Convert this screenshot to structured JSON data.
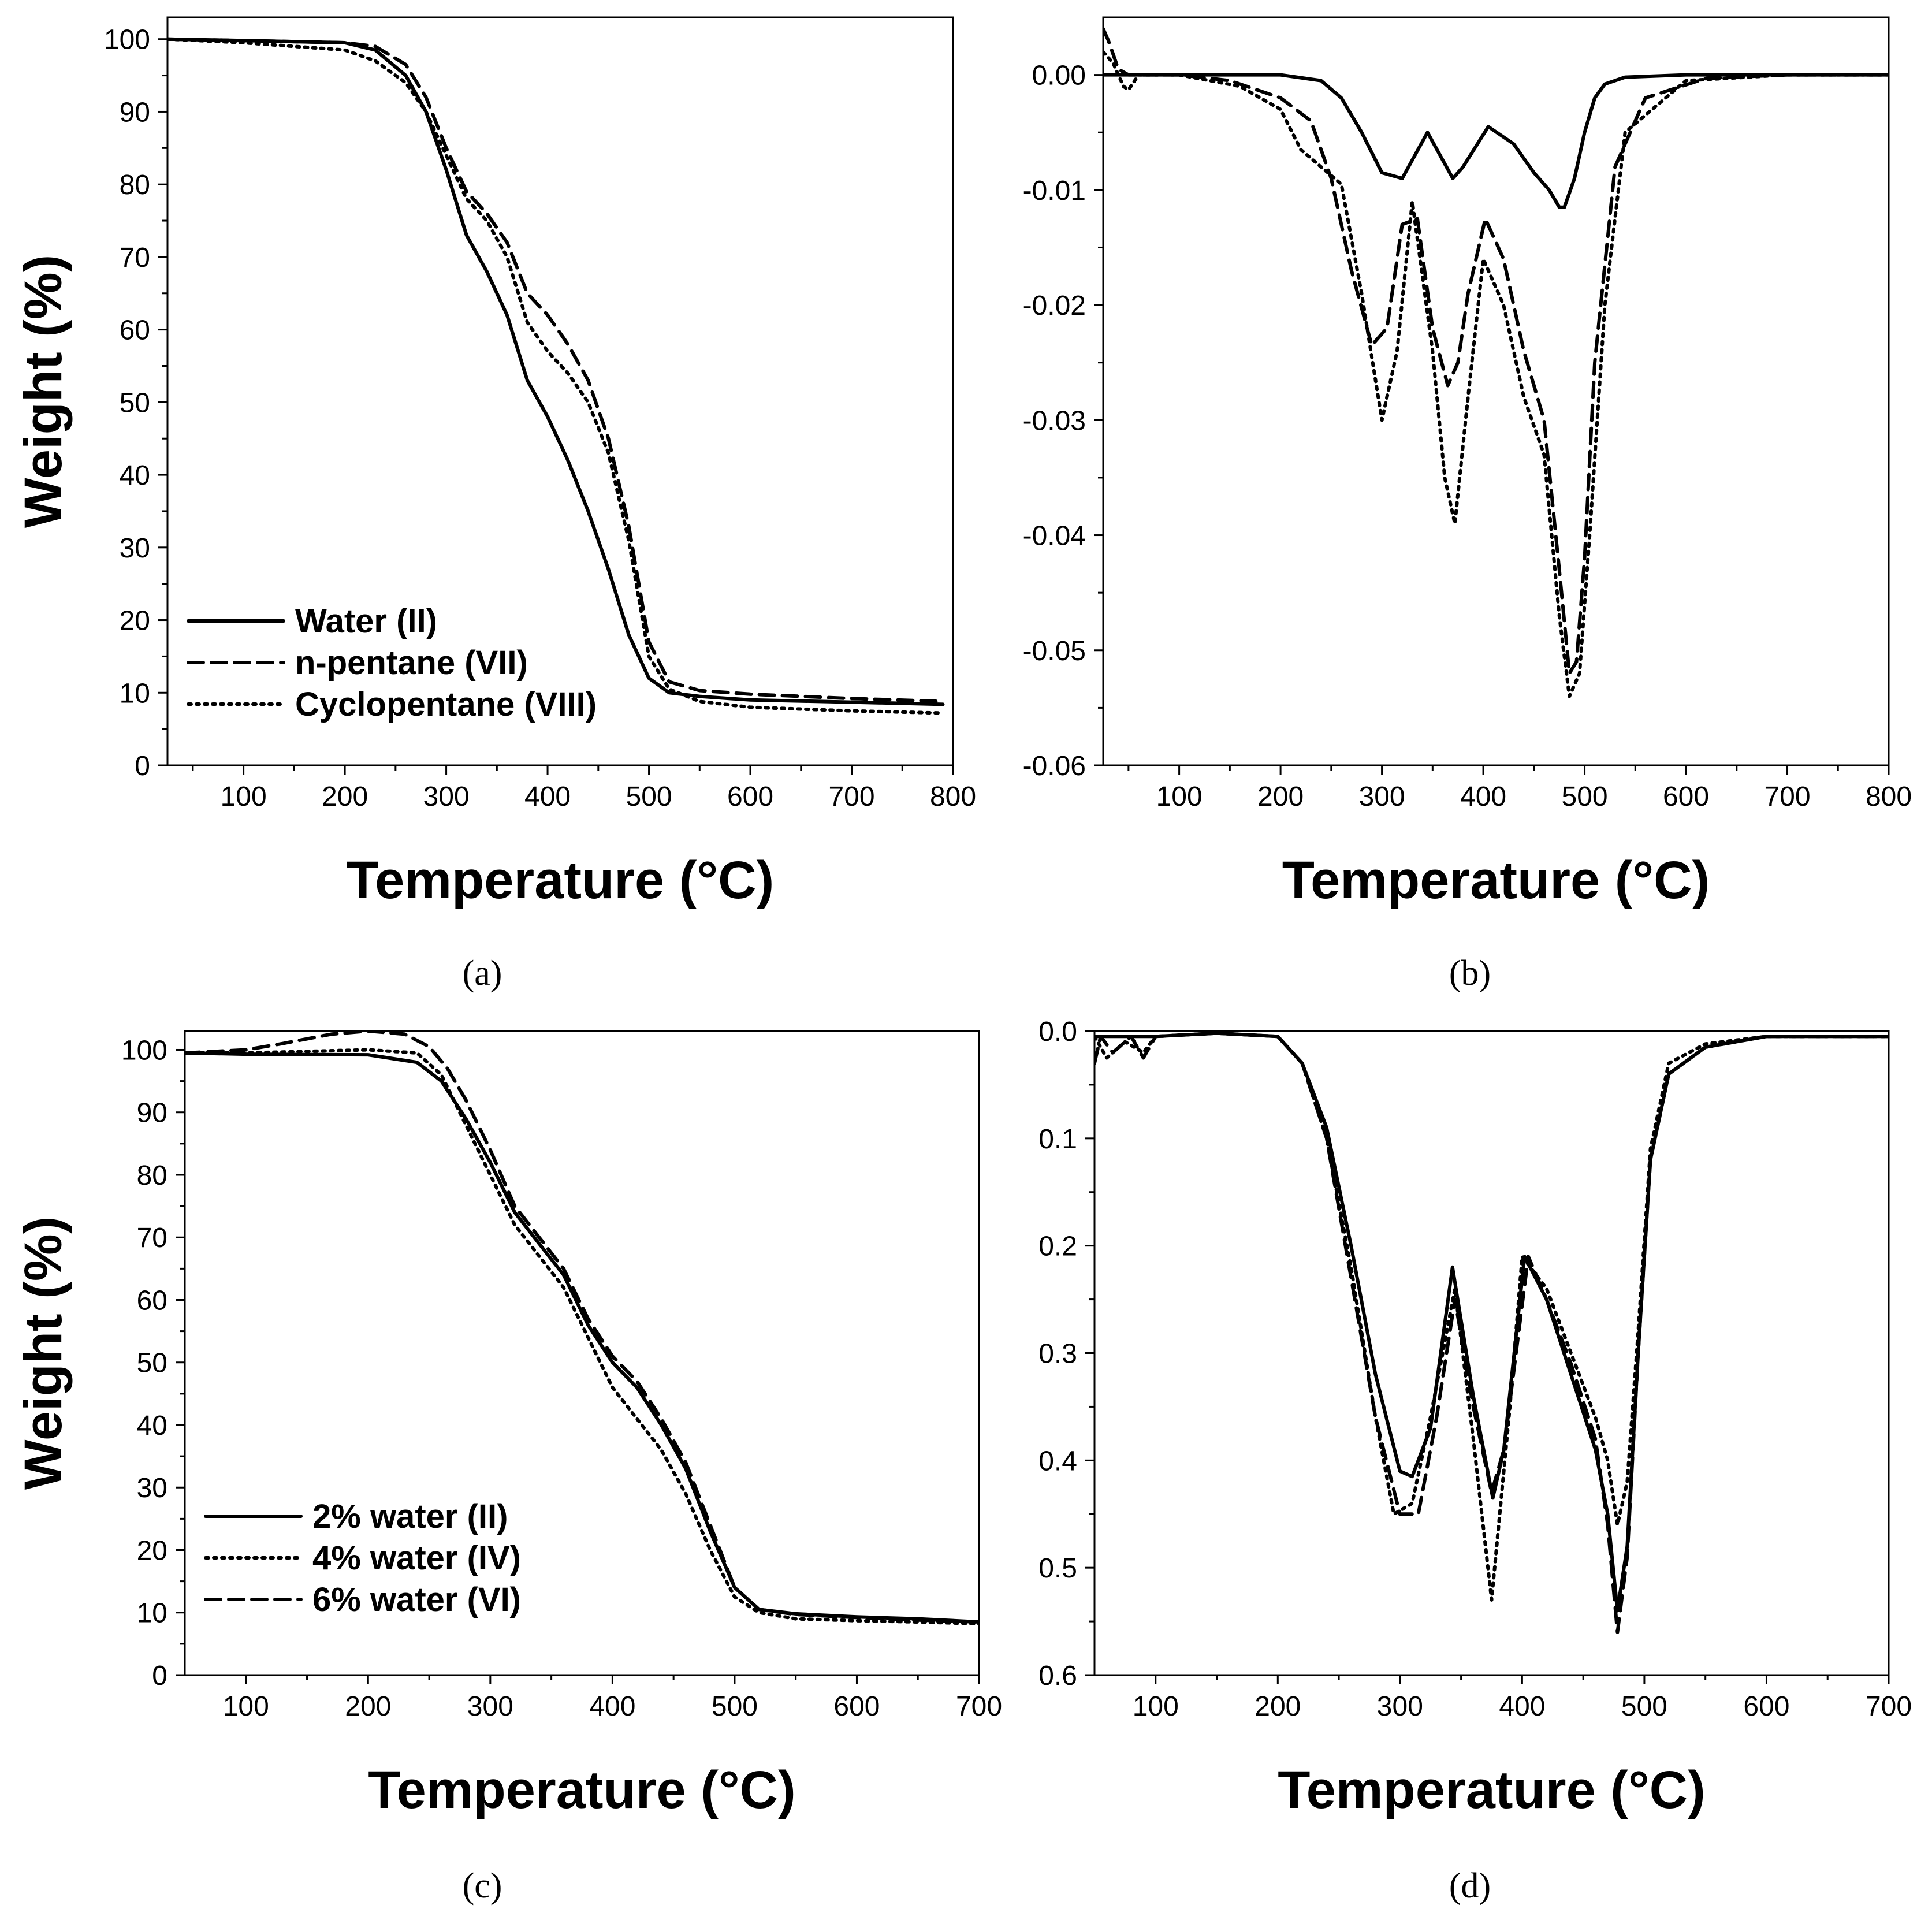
{
  "figure_labels": [
    "(a)",
    "(b)",
    "(c)",
    "(d)"
  ],
  "chart_data": [
    {
      "id": "a",
      "type": "line",
      "panel_label": "(a)",
      "xlabel": "Temperature (°C)",
      "ylabel": "Weight (%)",
      "xlim": [
        25,
        800
      ],
      "ylim": [
        0,
        103
      ],
      "xticks": [
        100,
        200,
        300,
        400,
        500,
        600,
        700,
        800
      ],
      "yticks": [
        0,
        10,
        20,
        30,
        40,
        50,
        60,
        70,
        80,
        90,
        100
      ],
      "legend_position": "bottom-left",
      "series": [
        {
          "name": "Water  (II)",
          "style": "solid",
          "x": [
            25,
            100,
            200,
            230,
            260,
            280,
            300,
            320,
            340,
            360,
            380,
            400,
            420,
            440,
            460,
            480,
            500,
            520,
            550,
            600,
            700,
            790
          ],
          "y": [
            100,
            99.8,
            99.5,
            98.5,
            95,
            90,
            82,
            73,
            68,
            62,
            53,
            48,
            42,
            35,
            27,
            18,
            12,
            10,
            9.5,
            9,
            8.7,
            8.4
          ]
        },
        {
          "name": "n-pentane (VII)",
          "style": "dashed",
          "x": [
            25,
            100,
            200,
            230,
            260,
            280,
            300,
            320,
            340,
            360,
            380,
            400,
            420,
            440,
            460,
            480,
            500,
            520,
            550,
            600,
            700,
            790
          ],
          "y": [
            100,
            99.8,
            99.5,
            99,
            96.5,
            92,
            85,
            79,
            76,
            72,
            65,
            62,
            58,
            53,
            45,
            33,
            17,
            11.5,
            10.3,
            9.8,
            9.2,
            8.8
          ]
        },
        {
          "name": "Cyclopentane (VIII)",
          "style": "dotted",
          "x": [
            25,
            100,
            200,
            230,
            260,
            280,
            300,
            320,
            340,
            360,
            380,
            400,
            420,
            440,
            460,
            480,
            500,
            520,
            550,
            600,
            700,
            790
          ],
          "y": [
            100,
            99.5,
            98.5,
            97,
            94,
            90,
            84,
            78,
            75,
            70,
            61,
            57,
            54,
            50,
            43,
            31,
            15,
            10.5,
            8.8,
            8.0,
            7.5,
            7.2
          ]
        }
      ]
    },
    {
      "id": "b",
      "type": "line",
      "panel_label": "(b)",
      "xlabel": "Temperature (°C)",
      "ylabel": "",
      "xlim": [
        25,
        800
      ],
      "ylim": [
        -0.06,
        0.005
      ],
      "xticks": [
        100,
        200,
        300,
        400,
        500,
        600,
        700,
        800
      ],
      "yticks": [
        0.0,
        -0.01,
        -0.02,
        -0.03,
        -0.04,
        -0.05,
        -0.06
      ],
      "ytick_labels": [
        "0.00",
        "-0.01",
        "-0.02",
        "-0.03",
        "-0.04",
        "-0.05",
        "-0.06"
      ],
      "series": [
        {
          "name": "Water  (II)",
          "style": "solid",
          "x": [
            25,
            100,
            200,
            240,
            260,
            280,
            300,
            320,
            345,
            370,
            380,
            405,
            430,
            450,
            465,
            475,
            480,
            490,
            500,
            510,
            520,
            540,
            600,
            700,
            800
          ],
          "y": [
            0,
            0,
            0,
            -0.0005,
            -0.002,
            -0.005,
            -0.0085,
            -0.009,
            -0.005,
            -0.009,
            -0.008,
            -0.0045,
            -0.006,
            -0.0085,
            -0.01,
            -0.0115,
            -0.0115,
            -0.009,
            -0.005,
            -0.002,
            -0.0008,
            -0.0002,
            0,
            0,
            0
          ]
        },
        {
          "name": "n-pentane (VII)",
          "style": "dashed",
          "x": [
            25,
            30,
            40,
            50,
            100,
            150,
            200,
            230,
            250,
            270,
            290,
            305,
            320,
            335,
            350,
            365,
            375,
            385,
            402,
            420,
            440,
            460,
            475,
            485,
            492,
            500,
            510,
            530,
            560,
            620,
            700,
            800
          ],
          "y": [
            0.004,
            0.003,
            0.0005,
            0,
            0,
            -0.0005,
            -0.002,
            -0.004,
            -0.009,
            -0.017,
            -0.0235,
            -0.022,
            -0.013,
            -0.0125,
            -0.022,
            -0.027,
            -0.025,
            -0.019,
            -0.0125,
            -0.016,
            -0.024,
            -0.03,
            -0.043,
            -0.052,
            -0.051,
            -0.042,
            -0.025,
            -0.008,
            -0.002,
            -0.0003,
            0,
            0
          ]
        },
        {
          "name": "Cyclopentane (VIII)",
          "style": "dotted",
          "x": [
            25,
            35,
            45,
            50,
            60,
            100,
            160,
            200,
            220,
            240,
            260,
            280,
            300,
            315,
            330,
            350,
            362,
            372,
            385,
            400,
            420,
            440,
            460,
            475,
            485,
            495,
            505,
            520,
            540,
            600,
            700,
            800
          ],
          "y": [
            0.002,
            0.001,
            -0.001,
            -0.0013,
            0,
            0,
            -0.001,
            -0.003,
            -0.0065,
            -0.008,
            -0.0095,
            -0.019,
            -0.03,
            -0.024,
            -0.011,
            -0.024,
            -0.035,
            -0.039,
            -0.028,
            -0.016,
            -0.02,
            -0.028,
            -0.033,
            -0.047,
            -0.054,
            -0.052,
            -0.04,
            -0.02,
            -0.005,
            -0.0005,
            0,
            0
          ]
        }
      ]
    },
    {
      "id": "c",
      "type": "line",
      "panel_label": "(c)",
      "xlabel": "Temperature (°C)",
      "ylabel": "Weight (%)",
      "xlim": [
        50,
        700
      ],
      "ylim": [
        0,
        103
      ],
      "xticks": [
        100,
        200,
        300,
        400,
        500,
        600,
        700
      ],
      "yticks": [
        0,
        10,
        20,
        30,
        40,
        50,
        60,
        70,
        80,
        90,
        100
      ],
      "legend_position": "bottom-left",
      "series": [
        {
          "name": "2% water (II)",
          "style": "solid",
          "x": [
            50,
            100,
            200,
            240,
            260,
            280,
            300,
            320,
            340,
            360,
            380,
            400,
            420,
            440,
            460,
            480,
            500,
            520,
            550,
            600,
            650,
            700
          ],
          "y": [
            99.5,
            99.3,
            99.2,
            98,
            95,
            89,
            82,
            74,
            69,
            64,
            56,
            50,
            46,
            40,
            33,
            23,
            14,
            10.5,
            9.8,
            9.3,
            9.0,
            8.5
          ]
        },
        {
          "name": "4% water (IV)",
          "style": "dotted",
          "x": [
            50,
            100,
            200,
            240,
            260,
            280,
            300,
            320,
            340,
            360,
            380,
            400,
            420,
            440,
            460,
            480,
            500,
            520,
            550,
            600,
            650,
            700
          ],
          "y": [
            99.5,
            99.5,
            100,
            99.5,
            96,
            88,
            80,
            72,
            67,
            62,
            54,
            46,
            41,
            36,
            29,
            20,
            12.5,
            10,
            9,
            8.7,
            8.5,
            8.2
          ]
        },
        {
          "name": "6% water (VI)",
          "style": "dashed",
          "x": [
            50,
            100,
            130,
            170,
            200,
            230,
            250,
            265,
            280,
            300,
            320,
            340,
            360,
            380,
            400,
            420,
            440,
            460,
            480,
            500,
            520,
            550,
            600,
            650,
            700
          ],
          "y": [
            99.5,
            100,
            101,
            102.5,
            103,
            102.5,
            100.5,
            97,
            92,
            84,
            75,
            70,
            65,
            57,
            51,
            47,
            41,
            34,
            24,
            14,
            10.5,
            9.7,
            9.2,
            8.8,
            8.5
          ]
        }
      ]
    },
    {
      "id": "d",
      "type": "line",
      "panel_label": "(d)",
      "xlabel": "Temperature (°C)",
      "ylabel": "",
      "xlim": [
        50,
        700
      ],
      "ylim": [
        0.0,
        0.6
      ],
      "y_inverted": true,
      "xticks": [
        100,
        200,
        300,
        400,
        500,
        600,
        700
      ],
      "yticks": [
        0.0,
        0.1,
        0.2,
        0.3,
        0.4,
        0.5,
        0.6
      ],
      "ytick_labels": [
        "0.0",
        "0.1",
        "0.2",
        "0.3",
        "0.4",
        "0.5",
        "0.6"
      ],
      "series": [
        {
          "name": "2% water (II)",
          "style": "solid",
          "x": [
            50,
            100,
            150,
            200,
            220,
            240,
            260,
            280,
            300,
            310,
            325,
            343,
            360,
            376,
            385,
            402,
            420,
            440,
            460,
            470,
            478,
            486,
            495,
            505,
            520,
            550,
            600,
            650,
            700
          ],
          "y": [
            0.005,
            0.005,
            0.002,
            0.005,
            0.03,
            0.09,
            0.2,
            0.32,
            0.41,
            0.415,
            0.37,
            0.22,
            0.34,
            0.435,
            0.39,
            0.21,
            0.25,
            0.32,
            0.39,
            0.45,
            0.54,
            0.48,
            0.3,
            0.12,
            0.04,
            0.015,
            0.005,
            0.005,
            0.005
          ]
        },
        {
          "name": "4% water (IV)",
          "style": "dotted",
          "x": [
            50,
            60,
            75,
            90,
            100,
            150,
            200,
            220,
            240,
            260,
            280,
            295,
            310,
            325,
            345,
            360,
            375,
            390,
            400,
            420,
            440,
            460,
            470,
            478,
            486,
            495,
            505,
            520,
            550,
            600,
            650,
            700
          ],
          "y": [
            0.005,
            0.025,
            0.01,
            0.02,
            0.005,
            0.002,
            0.005,
            0.03,
            0.1,
            0.22,
            0.36,
            0.45,
            0.44,
            0.36,
            0.24,
            0.38,
            0.53,
            0.35,
            0.21,
            0.24,
            0.3,
            0.36,
            0.4,
            0.46,
            0.42,
            0.28,
            0.11,
            0.03,
            0.012,
            0.005,
            0.005,
            0.005
          ]
        },
        {
          "name": "6% water (VI)",
          "style": "dashed",
          "x": [
            50,
            55,
            65,
            80,
            90,
            100,
            150,
            200,
            220,
            240,
            260,
            280,
            300,
            315,
            330,
            345,
            360,
            375,
            385,
            405,
            420,
            440,
            460,
            470,
            478,
            486,
            495,
            505,
            520,
            550,
            600,
            650,
            700
          ],
          "y": [
            0.03,
            0.005,
            0.02,
            0.005,
            0.025,
            0.005,
            0.002,
            0.005,
            0.03,
            0.1,
            0.23,
            0.36,
            0.45,
            0.45,
            0.36,
            0.25,
            0.35,
            0.43,
            0.39,
            0.21,
            0.25,
            0.31,
            0.38,
            0.46,
            0.56,
            0.49,
            0.3,
            0.12,
            0.04,
            0.015,
            0.005,
            0.005,
            0.005
          ]
        }
      ]
    }
  ]
}
